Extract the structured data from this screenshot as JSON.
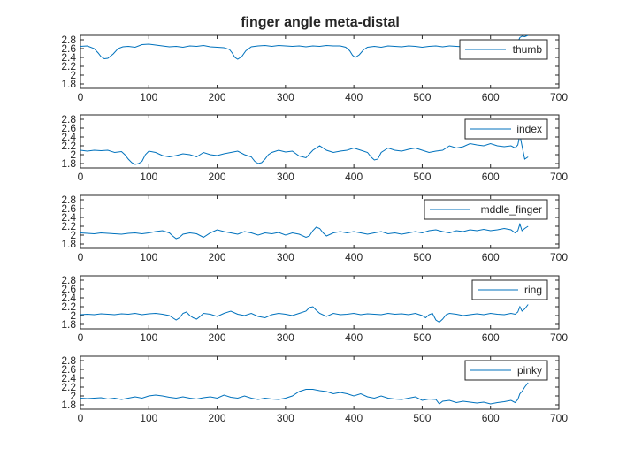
{
  "chart_data": {
    "type": "line",
    "title": "finger angle meta-distal",
    "line_color": "#0072BD",
    "grid": false,
    "xlim": [
      0,
      700
    ],
    "ylim": [
      1.7,
      2.9
    ],
    "x_ticks": [
      0,
      100,
      200,
      300,
      400,
      500,
      600,
      700
    ],
    "y_ticks": [
      1.8,
      2,
      2.2,
      2.4,
      2.6,
      2.8
    ],
    "legend_location": "right",
    "subplots": [
      {
        "name": "thumb",
        "x": [
          0,
          10,
          20,
          26,
          30,
          35,
          40,
          48,
          55,
          62,
          70,
          80,
          90,
          100,
          110,
          120,
          130,
          140,
          150,
          160,
          170,
          180,
          190,
          200,
          210,
          218,
          222,
          226,
          230,
          236,
          242,
          250,
          260,
          270,
          280,
          290,
          300,
          310,
          320,
          330,
          340,
          350,
          360,
          370,
          380,
          388,
          394,
          398,
          402,
          408,
          414,
          420,
          430,
          440,
          450,
          460,
          470,
          480,
          490,
          500,
          510,
          520,
          530,
          540,
          550,
          560,
          570,
          580,
          590,
          600,
          610,
          620,
          630,
          636,
          640,
          643,
          646,
          650,
          655
        ],
        "y": [
          2.65,
          2.66,
          2.6,
          2.5,
          2.42,
          2.37,
          2.38,
          2.48,
          2.6,
          2.64,
          2.65,
          2.63,
          2.69,
          2.7,
          2.68,
          2.66,
          2.64,
          2.65,
          2.63,
          2.66,
          2.65,
          2.67,
          2.64,
          2.63,
          2.62,
          2.58,
          2.5,
          2.4,
          2.36,
          2.42,
          2.55,
          2.64,
          2.66,
          2.67,
          2.65,
          2.67,
          2.66,
          2.65,
          2.66,
          2.64,
          2.66,
          2.65,
          2.67,
          2.66,
          2.66,
          2.63,
          2.55,
          2.45,
          2.4,
          2.46,
          2.57,
          2.63,
          2.65,
          2.63,
          2.66,
          2.65,
          2.64,
          2.66,
          2.65,
          2.63,
          2.65,
          2.66,
          2.64,
          2.66,
          2.65,
          2.64,
          2.66,
          2.65,
          2.67,
          2.64,
          2.66,
          2.64,
          2.66,
          2.68,
          2.75,
          2.85,
          2.88,
          2.87,
          2.9
        ]
      },
      {
        "name": "index",
        "x": [
          0,
          10,
          20,
          30,
          40,
          50,
          60,
          65,
          70,
          75,
          80,
          85,
          90,
          95,
          100,
          110,
          120,
          130,
          140,
          150,
          160,
          170,
          180,
          190,
          200,
          210,
          220,
          230,
          240,
          250,
          255,
          260,
          265,
          270,
          275,
          280,
          290,
          300,
          310,
          320,
          330,
          340,
          350,
          360,
          370,
          380,
          390,
          400,
          410,
          420,
          425,
          430,
          435,
          440,
          450,
          460,
          470,
          480,
          490,
          500,
          510,
          520,
          530,
          540,
          550,
          560,
          570,
          580,
          590,
          600,
          610,
          620,
          630,
          636,
          640,
          643,
          646,
          650,
          655
        ],
        "y": [
          2.1,
          2.08,
          2.1,
          2.09,
          2.1,
          2.05,
          2.07,
          2.0,
          1.9,
          1.82,
          1.78,
          1.8,
          1.85,
          2.0,
          2.08,
          2.05,
          1.98,
          1.95,
          1.98,
          2.02,
          2.0,
          1.95,
          2.05,
          2.0,
          1.98,
          2.02,
          2.05,
          2.08,
          2.0,
          1.95,
          1.85,
          1.8,
          1.82,
          1.9,
          2.0,
          2.05,
          2.1,
          2.06,
          2.08,
          1.97,
          1.93,
          2.1,
          2.2,
          2.1,
          2.05,
          2.08,
          2.1,
          2.15,
          2.1,
          2.05,
          1.95,
          1.88,
          1.9,
          2.05,
          2.15,
          2.1,
          2.08,
          2.12,
          2.15,
          2.1,
          2.05,
          2.08,
          2.1,
          2.2,
          2.15,
          2.18,
          2.25,
          2.22,
          2.2,
          2.25,
          2.2,
          2.18,
          2.2,
          2.15,
          2.22,
          2.45,
          2.2,
          1.9,
          1.95
        ]
      },
      {
        "name": "mddle_finger",
        "x": [
          0,
          10,
          20,
          30,
          40,
          50,
          60,
          70,
          80,
          90,
          100,
          110,
          120,
          130,
          135,
          140,
          145,
          150,
          160,
          170,
          180,
          190,
          200,
          210,
          220,
          230,
          240,
          250,
          260,
          270,
          280,
          290,
          300,
          310,
          320,
          330,
          335,
          340,
          345,
          350,
          355,
          360,
          370,
          380,
          390,
          400,
          410,
          420,
          430,
          440,
          450,
          460,
          470,
          480,
          490,
          500,
          510,
          520,
          530,
          540,
          550,
          560,
          570,
          580,
          590,
          600,
          610,
          620,
          630,
          636,
          640,
          643,
          646,
          650,
          655
        ],
        "y": [
          2.05,
          2.04,
          2.03,
          2.05,
          2.04,
          2.03,
          2.02,
          2.04,
          2.05,
          2.03,
          2.05,
          2.08,
          2.1,
          2.05,
          1.98,
          1.92,
          1.95,
          2.02,
          2.05,
          2.03,
          1.95,
          2.05,
          2.12,
          2.08,
          2.05,
          2.02,
          2.08,
          2.05,
          2.0,
          2.05,
          2.03,
          2.06,
          2.0,
          2.05,
          2.02,
          1.95,
          1.98,
          2.1,
          2.18,
          2.15,
          2.05,
          1.98,
          2.05,
          2.08,
          2.05,
          2.08,
          2.05,
          2.02,
          2.05,
          2.08,
          2.03,
          2.05,
          2.02,
          2.05,
          2.08,
          2.05,
          2.1,
          2.12,
          2.08,
          2.05,
          2.1,
          2.08,
          2.12,
          2.1,
          2.13,
          2.1,
          2.12,
          2.15,
          2.12,
          2.05,
          2.1,
          2.25,
          2.1,
          2.15,
          2.2
        ]
      },
      {
        "name": "ring",
        "x": [
          0,
          10,
          20,
          30,
          40,
          50,
          60,
          70,
          80,
          90,
          100,
          110,
          120,
          130,
          135,
          140,
          145,
          150,
          155,
          160,
          165,
          170,
          175,
          180,
          190,
          200,
          210,
          220,
          230,
          240,
          250,
          260,
          270,
          280,
          290,
          300,
          310,
          320,
          330,
          335,
          340,
          345,
          350,
          360,
          370,
          380,
          390,
          400,
          410,
          420,
          430,
          440,
          450,
          460,
          470,
          480,
          490,
          500,
          505,
          510,
          515,
          520,
          525,
          530,
          535,
          540,
          550,
          560,
          570,
          580,
          590,
          600,
          610,
          620,
          630,
          636,
          640,
          643,
          646,
          650,
          655
        ],
        "y": [
          2.02,
          2.03,
          2.02,
          2.04,
          2.03,
          2.02,
          2.04,
          2.03,
          2.05,
          2.02,
          2.04,
          2.05,
          2.03,
          2.0,
          1.95,
          1.9,
          1.95,
          2.05,
          2.08,
          2.0,
          1.95,
          1.92,
          1.98,
          2.05,
          2.03,
          1.98,
          2.05,
          2.1,
          2.03,
          2.0,
          2.05,
          1.98,
          1.95,
          2.02,
          2.05,
          2.03,
          2.0,
          2.05,
          2.1,
          2.18,
          2.2,
          2.12,
          2.05,
          1.98,
          2.05,
          2.02,
          2.03,
          2.05,
          2.02,
          2.04,
          2.03,
          2.02,
          2.05,
          2.03,
          2.04,
          2.02,
          2.05,
          2.0,
          1.95,
          2.02,
          2.05,
          1.9,
          1.85,
          1.92,
          2.02,
          2.05,
          2.03,
          2.0,
          2.02,
          2.04,
          2.02,
          2.05,
          2.03,
          2.02,
          2.05,
          2.03,
          2.08,
          2.2,
          2.1,
          2.15,
          2.25
        ]
      },
      {
        "name": "pinky",
        "x": [
          0,
          10,
          20,
          30,
          40,
          50,
          60,
          70,
          80,
          90,
          100,
          110,
          120,
          130,
          140,
          150,
          160,
          170,
          180,
          190,
          200,
          210,
          220,
          230,
          240,
          250,
          260,
          270,
          280,
          290,
          300,
          310,
          320,
          330,
          340,
          350,
          360,
          370,
          380,
          390,
          400,
          410,
          420,
          430,
          440,
          450,
          460,
          470,
          480,
          490,
          500,
          510,
          520,
          525,
          530,
          540,
          550,
          560,
          570,
          580,
          590,
          600,
          610,
          620,
          630,
          636,
          640,
          643,
          646,
          650,
          655
        ],
        "y": [
          1.95,
          1.94,
          1.95,
          1.96,
          1.93,
          1.95,
          1.92,
          1.95,
          1.98,
          1.95,
          2.0,
          2.02,
          2.0,
          1.97,
          1.95,
          1.98,
          1.95,
          1.93,
          1.96,
          1.98,
          1.95,
          2.02,
          1.97,
          1.95,
          2.0,
          1.95,
          1.92,
          1.95,
          1.93,
          1.92,
          1.95,
          2.0,
          2.1,
          2.15,
          2.15,
          2.12,
          2.1,
          2.05,
          2.08,
          2.05,
          2.0,
          2.05,
          1.98,
          1.95,
          2.0,
          1.95,
          1.93,
          1.92,
          1.95,
          1.98,
          1.9,
          1.93,
          1.92,
          1.82,
          1.88,
          1.9,
          1.85,
          1.88,
          1.86,
          1.84,
          1.86,
          1.82,
          1.85,
          1.87,
          1.9,
          1.85,
          1.92,
          2.05,
          2.1,
          2.2,
          2.3
        ]
      }
    ]
  }
}
